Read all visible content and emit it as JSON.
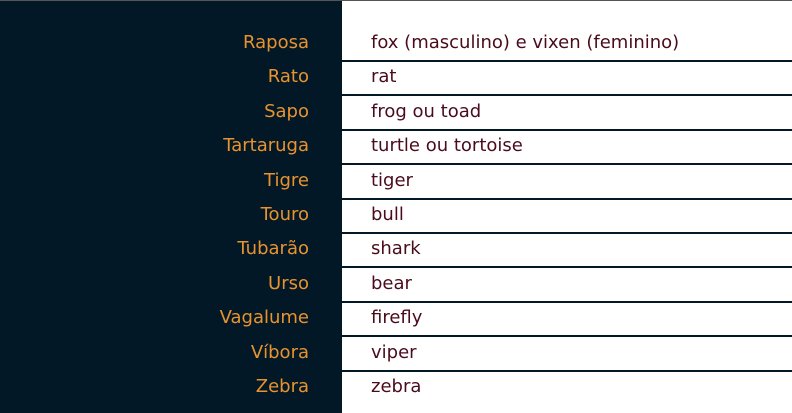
{
  "rows": [
    {
      "pt": "Raposa",
      "en": "fox (masculino) e vixen (feminino)"
    },
    {
      "pt": "Rato",
      "en": "rat"
    },
    {
      "pt": "Sapo",
      "en": "frog ou toad"
    },
    {
      "pt": "Tartaruga",
      "en": "turtle ou tortoise"
    },
    {
      "pt": "Tigre",
      "en": "tiger"
    },
    {
      "pt": "Touro",
      "en": "bull"
    },
    {
      "pt": "Tubarão",
      "en": "shark"
    },
    {
      "pt": "Urso",
      "en": "bear"
    },
    {
      "pt": "Vagalume",
      "en": "firefly"
    },
    {
      "pt": "Víbora",
      "en": "viper"
    },
    {
      "pt": "Zebra",
      "en": "zebra"
    }
  ]
}
